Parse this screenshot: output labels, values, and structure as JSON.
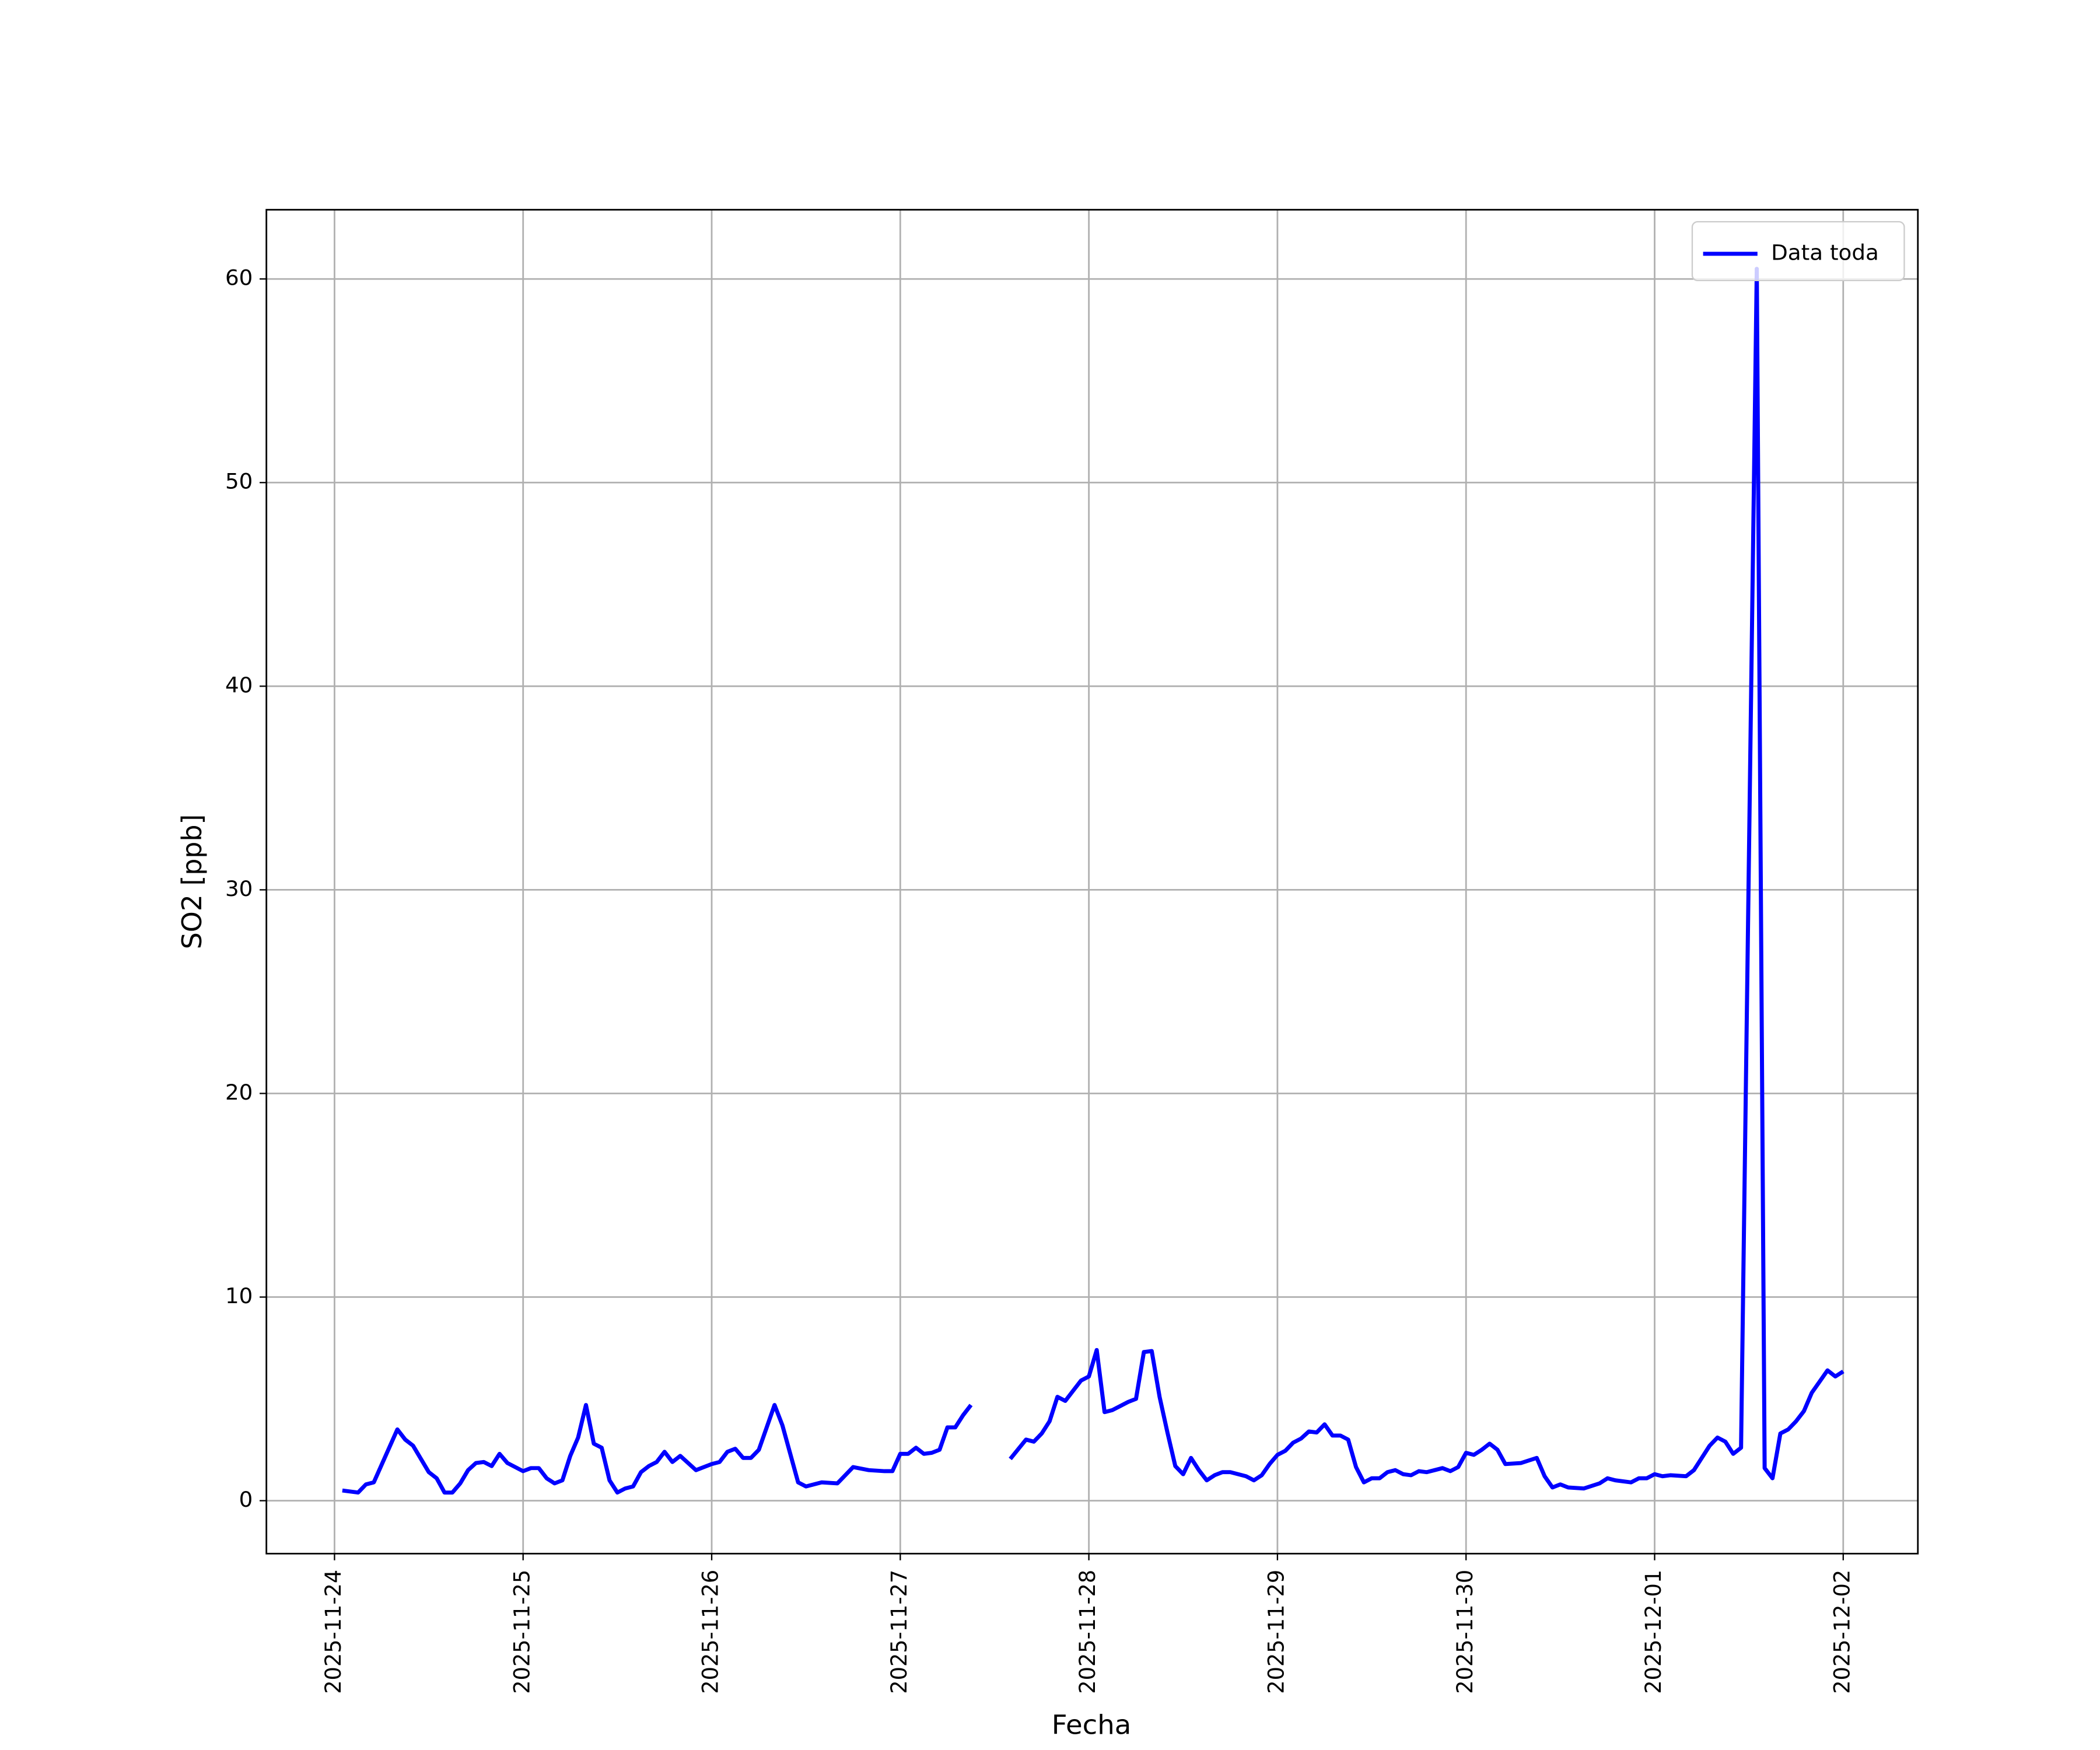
{
  "chart_data": {
    "type": "line",
    "xlabel": "Fecha",
    "ylabel": "SO2 [ppb]",
    "x": [
      "2025-11-24T01:00",
      "2025-11-24T03:00",
      "2025-11-24T04:00",
      "2025-11-24T05:00",
      "2025-11-24T08:00",
      "2025-11-24T09:00",
      "2025-11-24T10:00",
      "2025-11-24T12:00",
      "2025-11-24T13:00",
      "2025-11-24T14:00",
      "2025-11-24T15:00",
      "2025-11-24T16:00",
      "2025-11-24T17:00",
      "2025-11-24T18:00",
      "2025-11-24T19:00",
      "2025-11-24T20:00",
      "2025-11-24T21:00",
      "2025-11-24T22:00",
      "2025-11-25T00:00",
      "2025-11-25T01:00",
      "2025-11-25T02:00",
      "2025-11-25T03:00",
      "2025-11-25T04:00",
      "2025-11-25T05:00",
      "2025-11-25T06:00",
      "2025-11-25T07:00",
      "2025-11-25T08:00",
      "2025-11-25T09:00",
      "2025-11-25T10:00",
      "2025-11-25T11:00",
      "2025-11-25T12:00",
      "2025-11-25T13:00",
      "2025-11-25T14:00",
      "2025-11-25T15:00",
      "2025-11-25T16:00",
      "2025-11-25T17:00",
      "2025-11-25T18:00",
      "2025-11-25T19:00",
      "2025-11-25T20:00",
      "2025-11-25T21:00",
      "2025-11-25T22:00",
      "2025-11-26T00:00",
      "2025-11-26T01:00",
      "2025-11-26T02:00",
      "2025-11-26T03:00",
      "2025-11-26T04:00",
      "2025-11-26T05:00",
      "2025-11-26T06:00",
      "2025-11-26T07:00",
      "2025-11-26T08:00",
      "2025-11-26T09:00",
      "2025-11-26T11:00",
      "2025-11-26T12:00",
      "2025-11-26T14:00",
      "2025-11-26T16:00",
      "2025-11-26T18:00",
      "2025-11-26T20:00",
      "2025-11-26T22:00",
      "2025-11-26T23:00",
      "2025-11-27T00:00",
      "2025-11-27T01:00",
      "2025-11-27T02:00",
      "2025-11-27T03:00",
      "2025-11-27T04:00",
      "2025-11-27T05:00",
      "2025-11-27T06:00",
      "2025-11-27T07:00",
      "2025-11-27T08:00",
      "2025-11-27T09:00",
      "2025-11-27T12:00",
      "2025-11-27T14:00",
      "2025-11-27T16:00",
      "2025-11-27T17:00",
      "2025-11-27T18:00",
      "2025-11-27T19:00",
      "2025-11-27T20:00",
      "2025-11-27T21:00",
      "2025-11-27T22:00",
      "2025-11-27T23:00",
      "2025-11-28T00:00",
      "2025-11-28T01:00",
      "2025-11-28T02:00",
      "2025-11-28T03:00",
      "2025-11-28T04:00",
      "2025-11-28T05:00",
      "2025-11-28T06:00",
      "2025-11-28T07:00",
      "2025-11-28T08:00",
      "2025-11-28T09:00",
      "2025-11-28T10:00",
      "2025-11-28T11:00",
      "2025-11-28T12:00",
      "2025-11-28T13:00",
      "2025-11-28T14:00",
      "2025-11-28T15:00",
      "2025-11-28T16:00",
      "2025-11-28T17:00",
      "2025-11-28T18:00",
      "2025-11-28T20:00",
      "2025-11-28T21:00",
      "2025-11-28T22:00",
      "2025-11-28T23:00",
      "2025-11-29T00:00",
      "2025-11-29T01:00",
      "2025-11-29T02:00",
      "2025-11-29T03:00",
      "2025-11-29T04:00",
      "2025-11-29T05:00",
      "2025-11-29T06:00",
      "2025-11-29T07:00",
      "2025-11-29T08:00",
      "2025-11-29T09:00",
      "2025-11-29T10:00",
      "2025-11-29T11:00",
      "2025-11-29T12:00",
      "2025-11-29T13:00",
      "2025-11-29T14:00",
      "2025-11-29T15:00",
      "2025-11-29T16:00",
      "2025-11-29T17:00",
      "2025-11-29T18:00",
      "2025-11-29T19:00",
      "2025-11-29T20:00",
      "2025-11-29T21:00",
      "2025-11-29T22:00",
      "2025-11-29T23:00",
      "2025-11-30T00:00",
      "2025-11-30T01:00",
      "2025-11-30T02:00",
      "2025-11-30T03:00",
      "2025-11-30T04:00",
      "2025-11-30T05:00",
      "2025-11-30T07:00",
      "2025-11-30T09:00",
      "2025-11-30T10:00",
      "2025-11-30T11:00",
      "2025-11-30T12:00",
      "2025-11-30T13:00",
      "2025-11-30T15:00",
      "2025-11-30T17:00",
      "2025-11-30T18:00",
      "2025-11-30T19:00",
      "2025-11-30T21:00",
      "2025-11-30T22:00",
      "2025-11-30T23:00",
      "2025-12-01T00:00",
      "2025-12-01T01:00",
      "2025-12-01T02:00",
      "2025-12-01T04:00",
      "2025-12-01T05:00",
      "2025-12-01T06:00",
      "2025-12-01T07:00",
      "2025-12-01T08:00",
      "2025-12-01T09:00",
      "2025-12-01T10:00",
      "2025-12-01T11:00",
      "2025-12-01T13:00",
      "2025-12-01T14:00",
      "2025-12-01T15:00",
      "2025-12-01T16:00",
      "2025-12-01T17:00",
      "2025-12-01T18:00",
      "2025-12-01T19:00",
      "2025-12-01T20:00",
      "2025-12-01T21:00",
      "2025-12-01T22:00",
      "2025-12-01T23:00",
      "2025-12-02T00:00"
    ],
    "series": [
      {
        "name": "Data toda",
        "color": "#0000ff",
        "values": [
          0.5,
          0.4,
          0.8,
          0.9,
          3.5,
          3.0,
          2.7,
          1.4,
          1.1,
          0.4,
          0.4,
          0.85,
          1.5,
          1.85,
          1.9,
          1.7,
          2.3,
          1.85,
          1.45,
          1.6,
          1.6,
          1.1,
          0.85,
          1.0,
          2.2,
          3.1,
          4.7,
          2.8,
          2.6,
          1.0,
          0.4,
          0.6,
          0.7,
          1.4,
          1.7,
          1.9,
          2.4,
          1.9,
          2.2,
          1.85,
          1.5,
          1.8,
          1.9,
          2.4,
          2.55,
          2.1,
          2.1,
          2.5,
          3.6,
          4.7,
          3.7,
          0.9,
          0.7,
          0.9,
          0.85,
          1.65,
          1.5,
          1.45,
          1.45,
          2.3,
          2.3,
          2.6,
          2.3,
          2.35,
          2.5,
          3.6,
          3.6,
          4.2,
          4.7,
          null,
          2.05,
          3.0,
          2.9,
          3.3,
          3.9,
          5.1,
          4.9,
          5.4,
          5.9,
          6.1,
          7.4,
          4.35,
          4.45,
          4.65,
          4.85,
          5.0,
          7.3,
          7.35,
          5.1,
          3.35,
          1.7,
          1.3,
          2.1,
          1.5,
          1.0,
          1.25,
          1.4,
          1.4,
          1.2,
          1.0,
          1.25,
          1.8,
          2.25,
          2.45,
          2.85,
          3.05,
          3.4,
          3.35,
          3.75,
          3.2,
          3.2,
          3.0,
          1.65,
          0.9,
          1.1,
          1.1,
          1.4,
          1.5,
          1.3,
          1.25,
          1.45,
          1.4,
          1.5,
          1.6,
          1.45,
          1.65,
          2.35,
          2.25,
          2.5,
          2.8,
          2.5,
          1.8,
          1.85,
          2.1,
          1.2,
          0.65,
          0.8,
          0.65,
          0.6,
          0.85,
          1.1,
          1.0,
          0.9,
          1.1,
          1.1,
          1.3,
          1.2,
          1.25,
          1.2,
          1.5,
          2.1,
          2.7,
          3.1,
          2.9,
          2.3,
          2.6,
          60.5,
          1.6,
          1.1,
          3.3,
          3.5,
          3.9,
          4.4,
          5.3,
          5.85,
          6.4,
          6.1,
          6.35
        ]
      }
    ],
    "xlim": [
      "2025-11-23T15:20",
      "2025-12-02T09:30"
    ],
    "xticks": [
      "2025-11-24",
      "2025-11-25",
      "2025-11-26",
      "2025-11-27",
      "2025-11-28",
      "2025-11-29",
      "2025-11-30",
      "2025-12-01",
      "2025-12-02"
    ],
    "ylim": [
      -2.6,
      63.4
    ],
    "yticks": [
      0,
      10,
      20,
      30,
      40,
      50,
      60
    ],
    "grid": true,
    "legend": "upper right"
  }
}
